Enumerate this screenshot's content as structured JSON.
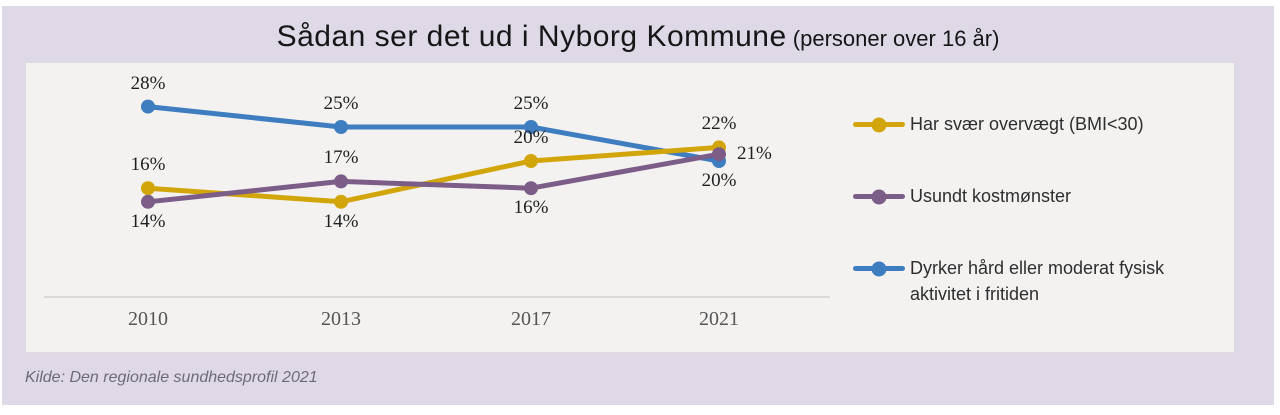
{
  "title": {
    "main": "Sådan ser det ud i Nyborg Kommune",
    "suffix": " (personer over 16 år)"
  },
  "source": "Kilde: Den regionale sundhedsprofil 2021",
  "colors": {
    "card_background": "#dfd9e7",
    "panel_background": "#f3f2f1",
    "axis_line": "#d9d9d9",
    "gold": "#d2a60a",
    "purple": "#7b5d88",
    "blue": "#3e7dbf"
  },
  "chart_data": {
    "type": "line",
    "title": "Sådan ser det ud i Nyborg Kommune (personer over 16 år)",
    "categories": [
      "2010",
      "2013",
      "2017",
      "2021"
    ],
    "series": [
      {
        "name": "Har svær overvægt (BMI<30)",
        "color": "#d2a60a",
        "values": [
          16,
          14,
          20,
          22
        ],
        "labels": [
          "16%",
          "14%",
          "20%",
          "22%"
        ],
        "label_positions": [
          "above",
          "below",
          "above",
          "above"
        ]
      },
      {
        "name": "Usundt kostmønster",
        "color": "#7b5d88",
        "values": [
          14,
          17,
          16,
          21
        ],
        "labels": [
          "14%",
          "17%",
          "16%",
          "21%"
        ],
        "label_positions": [
          "below",
          "above",
          "below",
          "right"
        ]
      },
      {
        "name": "Dyrker hård eller moderat fysisk aktivitet i fritiden",
        "color": "#3e7dbf",
        "values": [
          28,
          25,
          25,
          20
        ],
        "labels": [
          "28%",
          "25%",
          "25%",
          "20%"
        ],
        "label_positions": [
          "above",
          "above",
          "above",
          "below"
        ]
      }
    ],
    "unit": "%",
    "ylim": [
      0,
      34
    ],
    "grid": false,
    "legend_position": "right",
    "source": "Kilde: Den regionale sundhedsprofil 2021"
  }
}
